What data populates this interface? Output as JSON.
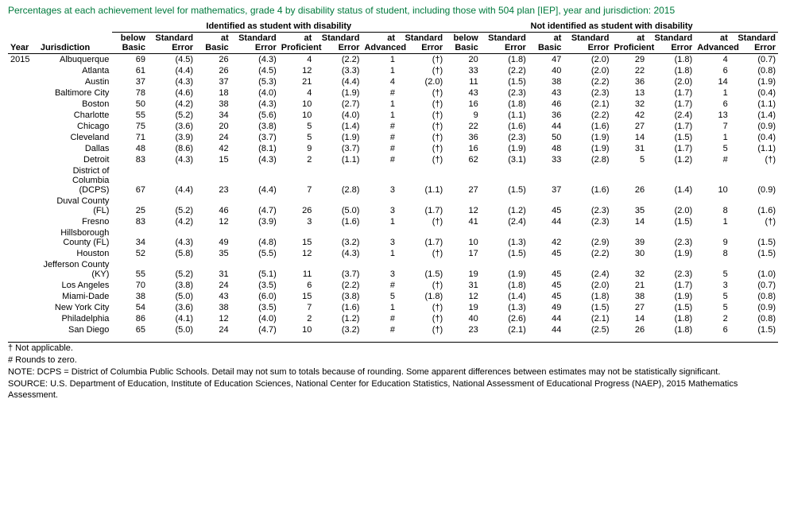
{
  "title": "Percentages at each achievement level for mathematics, grade 4 by disability status of student, including those with 504 plan [IEP], year and jurisdiction: 2015",
  "group_headers": [
    "Identified as student with disability",
    "Not identified as student with disability"
  ],
  "col_headers": {
    "year": "Year",
    "jurisdiction": "Jurisdiction",
    "below_basic": "below Basic",
    "se": "Standard Error",
    "at_basic": "at Basic",
    "at_proficient": "at Proficient",
    "at_advanced": "at Advanced"
  },
  "year": "2015",
  "rows": [
    {
      "jur": "Albuquerque",
      "d": [
        "69",
        "(4.5)",
        "26",
        "(4.3)",
        "4",
        "(2.2)",
        "1",
        "(†)"
      ],
      "n": [
        "20",
        "(1.8)",
        "47",
        "(2.0)",
        "29",
        "(1.8)",
        "4",
        "(0.7)"
      ]
    },
    {
      "jur": "Atlanta",
      "d": [
        "61",
        "(4.4)",
        "26",
        "(4.5)",
        "12",
        "(3.3)",
        "1",
        "(†)"
      ],
      "n": [
        "33",
        "(2.2)",
        "40",
        "(2.0)",
        "22",
        "(1.8)",
        "6",
        "(0.8)"
      ]
    },
    {
      "jur": "Austin",
      "d": [
        "37",
        "(4.3)",
        "37",
        "(5.3)",
        "21",
        "(4.4)",
        "4",
        "(2.0)"
      ],
      "n": [
        "11",
        "(1.5)",
        "38",
        "(2.2)",
        "36",
        "(2.0)",
        "14",
        "(1.9)"
      ]
    },
    {
      "jur": "Baltimore City",
      "d": [
        "78",
        "(4.6)",
        "18",
        "(4.0)",
        "4",
        "(1.9)",
        "#",
        "(†)"
      ],
      "n": [
        "43",
        "(2.3)",
        "43",
        "(2.3)",
        "13",
        "(1.7)",
        "1",
        "(0.4)"
      ]
    },
    {
      "jur": "Boston",
      "d": [
        "50",
        "(4.2)",
        "38",
        "(4.3)",
        "10",
        "(2.7)",
        "1",
        "(†)"
      ],
      "n": [
        "16",
        "(1.8)",
        "46",
        "(2.1)",
        "32",
        "(1.7)",
        "6",
        "(1.1)"
      ]
    },
    {
      "jur": "Charlotte",
      "d": [
        "55",
        "(5.2)",
        "34",
        "(5.6)",
        "10",
        "(4.0)",
        "1",
        "(†)"
      ],
      "n": [
        "9",
        "(1.1)",
        "36",
        "(2.2)",
        "42",
        "(2.4)",
        "13",
        "(1.4)"
      ]
    },
    {
      "jur": "Chicago",
      "d": [
        "75",
        "(3.6)",
        "20",
        "(3.8)",
        "5",
        "(1.4)",
        "#",
        "(†)"
      ],
      "n": [
        "22",
        "(1.6)",
        "44",
        "(1.6)",
        "27",
        "(1.7)",
        "7",
        "(0.9)"
      ]
    },
    {
      "jur": "Cleveland",
      "d": [
        "71",
        "(3.9)",
        "24",
        "(3.7)",
        "5",
        "(1.9)",
        "#",
        "(†)"
      ],
      "n": [
        "36",
        "(2.3)",
        "50",
        "(1.9)",
        "14",
        "(1.5)",
        "1",
        "(0.4)"
      ]
    },
    {
      "jur": "Dallas",
      "d": [
        "48",
        "(8.6)",
        "42",
        "(8.1)",
        "9",
        "(3.7)",
        "#",
        "(†)"
      ],
      "n": [
        "16",
        "(1.9)",
        "48",
        "(1.9)",
        "31",
        "(1.7)",
        "5",
        "(1.1)"
      ]
    },
    {
      "jur": "Detroit",
      "d": [
        "83",
        "(4.3)",
        "15",
        "(4.3)",
        "2",
        "(1.1)",
        "#",
        "(†)"
      ],
      "n": [
        "62",
        "(3.1)",
        "33",
        "(2.8)",
        "5",
        "(1.2)",
        "#",
        "(†)"
      ]
    },
    {
      "jur": "District of Columbia (DCPS)",
      "d": [
        "67",
        "(4.4)",
        "23",
        "(4.4)",
        "7",
        "(2.8)",
        "3",
        "(1.1)"
      ],
      "n": [
        "27",
        "(1.5)",
        "37",
        "(1.6)",
        "26",
        "(1.4)",
        "10",
        "(0.9)"
      ]
    },
    {
      "jur": "Duval County (FL)",
      "d": [
        "25",
        "(5.2)",
        "46",
        "(4.7)",
        "26",
        "(5.0)",
        "3",
        "(1.7)"
      ],
      "n": [
        "12",
        "(1.2)",
        "45",
        "(2.3)",
        "35",
        "(2.0)",
        "8",
        "(1.6)"
      ]
    },
    {
      "jur": "Fresno",
      "d": [
        "83",
        "(4.2)",
        "12",
        "(3.9)",
        "3",
        "(1.6)",
        "1",
        "(†)"
      ],
      "n": [
        "41",
        "(2.4)",
        "44",
        "(2.3)",
        "14",
        "(1.5)",
        "1",
        "(†)"
      ]
    },
    {
      "jur": "Hillsborough County (FL)",
      "d": [
        "34",
        "(4.3)",
        "49",
        "(4.8)",
        "15",
        "(3.2)",
        "3",
        "(1.7)"
      ],
      "n": [
        "10",
        "(1.3)",
        "42",
        "(2.9)",
        "39",
        "(2.3)",
        "9",
        "(1.5)"
      ]
    },
    {
      "jur": "Houston",
      "d": [
        "52",
        "(5.8)",
        "35",
        "(5.5)",
        "12",
        "(4.3)",
        "1",
        "(†)"
      ],
      "n": [
        "17",
        "(1.5)",
        "45",
        "(2.2)",
        "30",
        "(1.9)",
        "8",
        "(1.5)"
      ]
    },
    {
      "jur": "Jefferson County (KY)",
      "d": [
        "55",
        "(5.2)",
        "31",
        "(5.1)",
        "11",
        "(3.7)",
        "3",
        "(1.5)"
      ],
      "n": [
        "19",
        "(1.9)",
        "45",
        "(2.4)",
        "32",
        "(2.3)",
        "5",
        "(1.0)"
      ]
    },
    {
      "jur": "Los Angeles",
      "d": [
        "70",
        "(3.8)",
        "24",
        "(3.5)",
        "6",
        "(2.2)",
        "#",
        "(†)"
      ],
      "n": [
        "31",
        "(1.8)",
        "45",
        "(2.0)",
        "21",
        "(1.7)",
        "3",
        "(0.7)"
      ]
    },
    {
      "jur": "Miami-Dade",
      "d": [
        "38",
        "(5.0)",
        "43",
        "(6.0)",
        "15",
        "(3.8)",
        "5",
        "(1.8)"
      ],
      "n": [
        "12",
        "(1.4)",
        "45",
        "(1.8)",
        "38",
        "(1.9)",
        "5",
        "(0.8)"
      ]
    },
    {
      "jur": "New York City",
      "d": [
        "54",
        "(3.6)",
        "38",
        "(3.5)",
        "7",
        "(1.6)",
        "1",
        "(†)"
      ],
      "n": [
        "19",
        "(1.3)",
        "49",
        "(1.5)",
        "27",
        "(1.5)",
        "5",
        "(0.9)"
      ]
    },
    {
      "jur": "Philadelphia",
      "d": [
        "86",
        "(4.1)",
        "12",
        "(4.0)",
        "2",
        "(1.2)",
        "#",
        "(†)"
      ],
      "n": [
        "40",
        "(2.6)",
        "44",
        "(2.1)",
        "14",
        "(1.8)",
        "2",
        "(0.8)"
      ]
    },
    {
      "jur": "San Diego",
      "d": [
        "65",
        "(5.0)",
        "24",
        "(4.7)",
        "10",
        "(3.2)",
        "#",
        "(†)"
      ],
      "n": [
        "23",
        "(2.1)",
        "44",
        "(2.5)",
        "26",
        "(1.8)",
        "6",
        "(1.5)"
      ]
    }
  ],
  "footnotes": [
    "† Not applicable.",
    "# Rounds to zero.",
    "NOTE: DCPS = District of Columbia Public Schools. Detail may not sum to totals because of rounding. Some apparent differences between estimates may not be statistically significant.",
    "SOURCE: U.S. Department of Education, Institute of Education Sciences, National Center for Education Statistics, National Assessment of Educational Progress (NAEP), 2015 Mathematics Assessment."
  ]
}
